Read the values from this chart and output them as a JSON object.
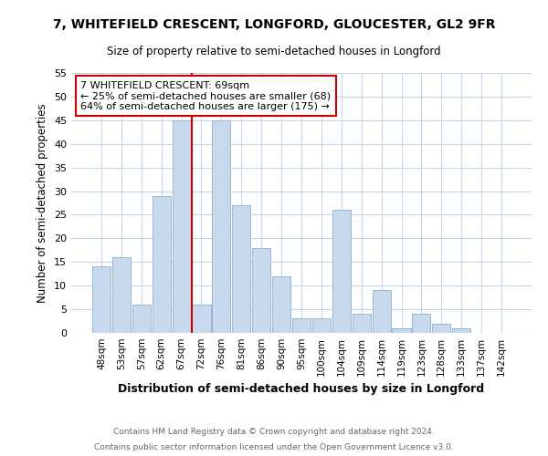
{
  "title1": "7, WHITEFIELD CRESCENT, LONGFORD, GLOUCESTER, GL2 9FR",
  "title2": "Size of property relative to semi-detached houses in Longford",
  "xlabel": "Distribution of semi-detached houses by size in Longford",
  "ylabel": "Number of semi-detached properties",
  "footer1": "Contains HM Land Registry data © Crown copyright and database right 2024.",
  "footer2": "Contains public sector information licensed under the Open Government Licence v3.0.",
  "bar_labels": [
    "48sqm",
    "53sqm",
    "57sqm",
    "62sqm",
    "67sqm",
    "72sqm",
    "76sqm",
    "81sqm",
    "86sqm",
    "90sqm",
    "95sqm",
    "100sqm",
    "104sqm",
    "109sqm",
    "114sqm",
    "119sqm",
    "123sqm",
    "128sqm",
    "133sqm",
    "137sqm",
    "142sqm"
  ],
  "bar_values": [
    14,
    16,
    6,
    29,
    45,
    6,
    45,
    27,
    18,
    12,
    3,
    3,
    26,
    4,
    9,
    1,
    4,
    2,
    1,
    0,
    0
  ],
  "bar_color": "#c8d9ee",
  "bar_edge_color": "#9ab5d5",
  "vline_x": 4.5,
  "vline_color": "#cc0000",
  "annotation_title": "7 WHITEFIELD CRESCENT: 69sqm",
  "annotation_line1": "← 25% of semi-detached houses are smaller (68)",
  "annotation_line2": "64% of semi-detached houses are larger (175) →",
  "annotation_box_color": "#cc0000",
  "ylim": [
    0,
    55
  ],
  "yticks": [
    0,
    5,
    10,
    15,
    20,
    25,
    30,
    35,
    40,
    45,
    50,
    55
  ],
  "background_color": "#ffffff",
  "grid_color": "#c8d4e8"
}
